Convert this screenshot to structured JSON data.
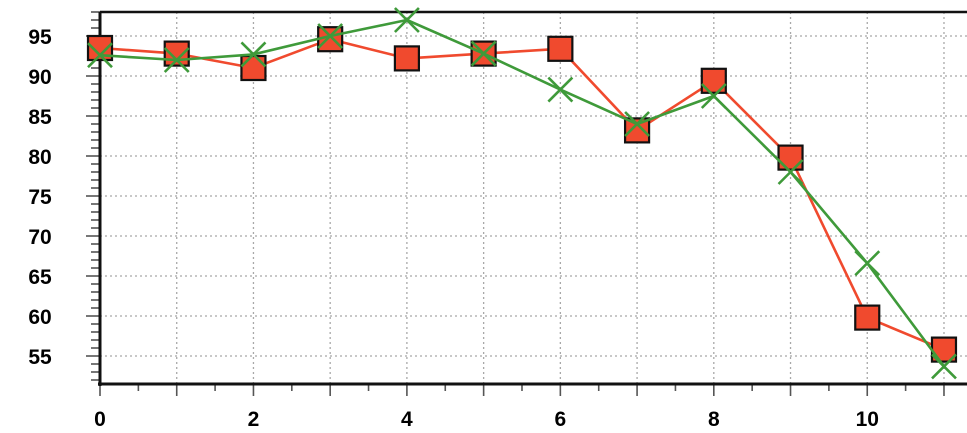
{
  "chart_data": {
    "type": "line",
    "x": [
      0,
      1,
      2,
      3,
      4,
      5,
      6,
      7,
      8,
      9,
      10,
      11
    ],
    "xlim": [
      0,
      11.3
    ],
    "ylim": [
      51.5,
      98
    ],
    "x_ticks": [
      0,
      2,
      4,
      6,
      8,
      10
    ],
    "x_tick_labels": [
      "0",
      "2",
      "4",
      "6",
      "8",
      "10"
    ],
    "y_ticks": [
      55,
      60,
      65,
      70,
      75,
      80,
      85,
      90,
      95
    ],
    "y_tick_labels": [
      "55",
      "60",
      "65",
      "70",
      "75",
      "80",
      "85",
      "90",
      "95"
    ],
    "grid": true,
    "legend": "none",
    "series": [
      {
        "marker": "square",
        "color": "#f04a2e",
        "values": [
          93.5,
          92.8,
          91.0,
          94.6,
          92.2,
          92.8,
          93.4,
          83.2,
          89.4,
          79.8,
          59.8,
          55.8
        ]
      },
      {
        "marker": "x",
        "color": "#3f9a3a",
        "values": [
          92.6,
          92.0,
          92.7,
          95.0,
          97.0,
          92.8,
          88.3,
          84.0,
          87.5,
          78.0,
          66.6,
          53.7
        ]
      }
    ]
  }
}
